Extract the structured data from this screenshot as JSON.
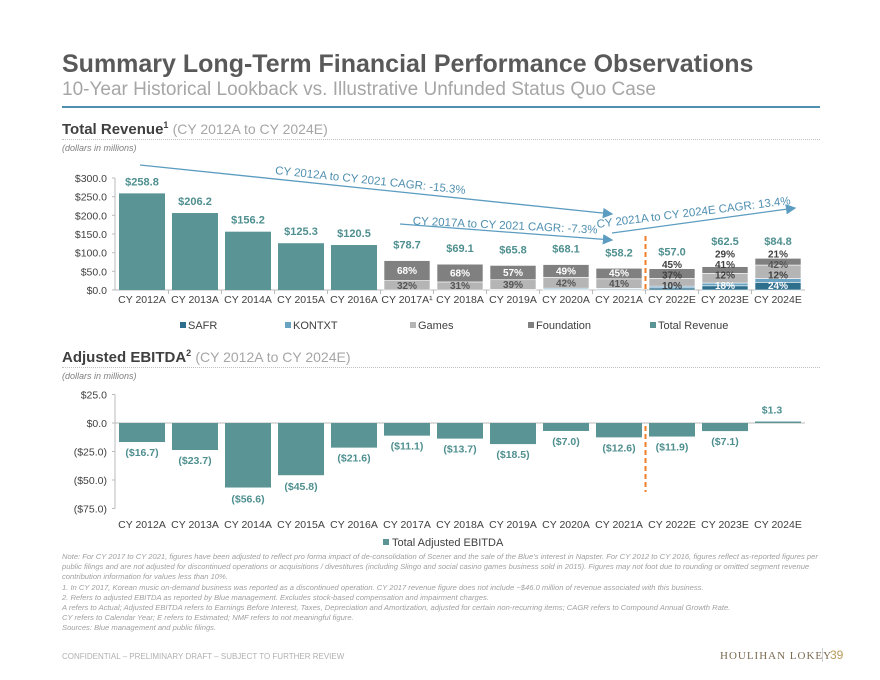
{
  "title": "Summary Long-Term Financial Performance Observations",
  "subtitle": "10-Year Historical Lookback vs. Illustrative Unfunded Status Quo Case",
  "colors": {
    "safr": "#2e6f8e",
    "kontxt": "#6aa3c2",
    "games": "#b5b5b5",
    "foundation": "#808080",
    "total": "#5a9494",
    "label": "#4f8f8f",
    "arrow": "#5b9cc0",
    "divider": "#f07d2a"
  },
  "revenue_section": {
    "title": "Total Revenue",
    "sup": "1",
    "range": "(CY 2012A to CY 2024E)",
    "unit": "(dollars in millions)"
  },
  "ebitda_section": {
    "title": "Adjusted EBITDA",
    "sup": "2",
    "range": "(CY 2012A to CY 2024E)",
    "unit": "(dollars in millions)"
  },
  "chart_data": [
    {
      "type": "bar",
      "title": "Total Revenue",
      "ylabel": "dollars in millions",
      "categories": [
        "CY 2012A",
        "CY 2013A",
        "CY 2014A",
        "CY 2015A",
        "CY 2016A",
        "CY 2017A",
        "CY 2018A",
        "CY 2019A",
        "CY 2020A",
        "CY 2021A",
        "CY 2022E",
        "CY 2023E",
        "CY 2024E"
      ],
      "category_labels": [
        "CY 2012A",
        "CY 2013A",
        "CY 2014A",
        "CY 2015A",
        "CY 2016A",
        "CY 2017A¹",
        "CY 2018A",
        "CY 2019A",
        "CY 2020A",
        "CY 2021A",
        "CY 2022E",
        "CY 2023E",
        "CY 2024E"
      ],
      "yticks": [
        "$0.0",
        "$50.0",
        "$100.0",
        "$150.0",
        "$200.0",
        "$250.0",
        "$300.0"
      ],
      "ylim": [
        0,
        300
      ],
      "values": [
        258.8,
        206.2,
        156.2,
        125.3,
        120.5,
        78.7,
        69.1,
        65.8,
        68.1,
        58.2,
        57.0,
        62.5,
        84.8
      ],
      "value_labels": [
        "$258.8",
        "$206.2",
        "$156.2",
        "$125.3",
        "$120.5",
        "$78.7",
        "$69.1",
        "$65.8",
        "$68.1",
        "$58.2",
        "$57.0",
        "$62.5",
        "$84.8"
      ],
      "segment_shares": [
        null,
        null,
        null,
        null,
        null,
        {
          "SAFR": 0,
          "KONTXT": 0,
          "Games": 32,
          "Foundation": 68
        },
        {
          "SAFR": 0,
          "KONTXT": 0,
          "Games": 31,
          "Foundation": 68
        },
        {
          "SAFR": 0,
          "KONTXT": 2,
          "Games": 39,
          "Foundation": 57
        },
        {
          "SAFR": 3,
          "KONTXT": 4,
          "Games": 42,
          "Foundation": 49
        },
        {
          "SAFR": 4,
          "KONTXT": 3,
          "Games": 41,
          "Foundation": 45
        },
        {
          "SAFR": 10,
          "KONTXT": 8,
          "Games": 37,
          "Foundation": 45
        },
        {
          "SAFR": 18,
          "KONTXT": 12,
          "Games": 41,
          "Foundation": 29
        },
        {
          "SAFR": 24,
          "KONTXT": 12,
          "Games": 42,
          "Foundation": 21
        }
      ],
      "legend": [
        "SAFR",
        "KONTXT",
        "Games",
        "Foundation",
        "Total Revenue"
      ],
      "legend_position": "bottom",
      "annotations": [
        "CY 2012A to CY 2021 CAGR: -15.3%",
        "CY 2017A to CY 2021 CAGR: -7.3%",
        "CY 2021A to CY 2024E CAGR: 13.4%"
      ]
    },
    {
      "type": "bar",
      "title": "Adjusted EBITDA",
      "ylabel": "dollars in millions",
      "categories": [
        "CY 2012A",
        "CY 2013A",
        "CY 2014A",
        "CY 2015A",
        "CY 2016A",
        "CY 2017A",
        "CY 2018A",
        "CY 2019A",
        "CY 2020A",
        "CY 2021A",
        "CY 2022E",
        "CY 2023E",
        "CY 2024E"
      ],
      "yticks": [
        "($75.0)",
        "($50.0)",
        "($25.0)",
        "$0.0",
        "$25.0"
      ],
      "ylim": [
        -75,
        25
      ],
      "values": [
        -16.7,
        -23.7,
        -56.6,
        -45.8,
        -21.6,
        -11.1,
        -13.7,
        -18.5,
        -7.0,
        -12.6,
        -11.9,
        -7.1,
        1.3
      ],
      "value_labels": [
        "($16.7)",
        "($23.7)",
        "($56.6)",
        "($45.8)",
        "($21.6)",
        "($11.1)",
        "($13.7)",
        "($18.5)",
        "($7.0)",
        "($12.6)",
        "($11.9)",
        "($7.1)",
        "$1.3"
      ],
      "legend": [
        "Total Adjusted EBITDA"
      ],
      "legend_position": "bottom"
    }
  ],
  "notes": [
    "Note: For CY 2017 to CY 2021, figures have been adjusted to reflect pro forma impact of de-consolidation of Scener and the sale of the Blue’s interest in Napster. For CY 2012 to CY 2016, figures reflect as-reported figures per public filings and are not adjusted for discontinued operations or acquisitions / divestitures (including Slingo and social casino games business sold in 2015). Figures may not foot due to rounding or omitted segment revenue contribution information for values less than 10%.",
    "1.  In CY 2017, Korean music on-demand business was reported as a discontinued operation. CY 2017 revenue figure does not include ~$46.0 million of revenue associated with this business.",
    "2.  Refers to adjusted EBITDA as reported by Blue management. Excludes stock-based compensation and impairment charges.",
    "A refers to Actual; Adjusted EBITDA refers to Earnings Before Interest, Taxes, Depreciation and Amortization, adjusted for certain non-recurring items; CAGR refers to Compound Annual Growth Rate.",
    "CY refers to Calendar Year; E refers to Estimated; NMF refers to not meaningful figure.",
    "Sources: Blue management and public filings."
  ],
  "footer": {
    "confidential": "CONFIDENTIAL – PRELIMINARY DRAFT – SUBJECT TO FURTHER REVIEW",
    "logo": "HOULIHAN LOKEY",
    "page": "39"
  }
}
